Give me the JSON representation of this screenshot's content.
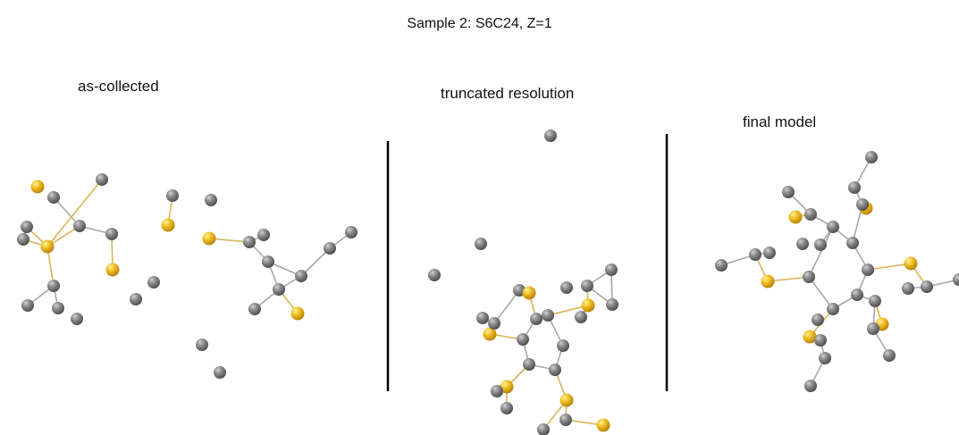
{
  "title": "Sample 2: S6C24, Z=1",
  "panels": [
    {
      "label": "as-collected"
    },
    {
      "label": "truncated resolution"
    },
    {
      "label": "final model"
    }
  ],
  "colors": {
    "carbon": "#7d7d7d",
    "sulfur": "#f0b81e",
    "bond": "#a8a8a8",
    "divider": "#000000"
  }
}
